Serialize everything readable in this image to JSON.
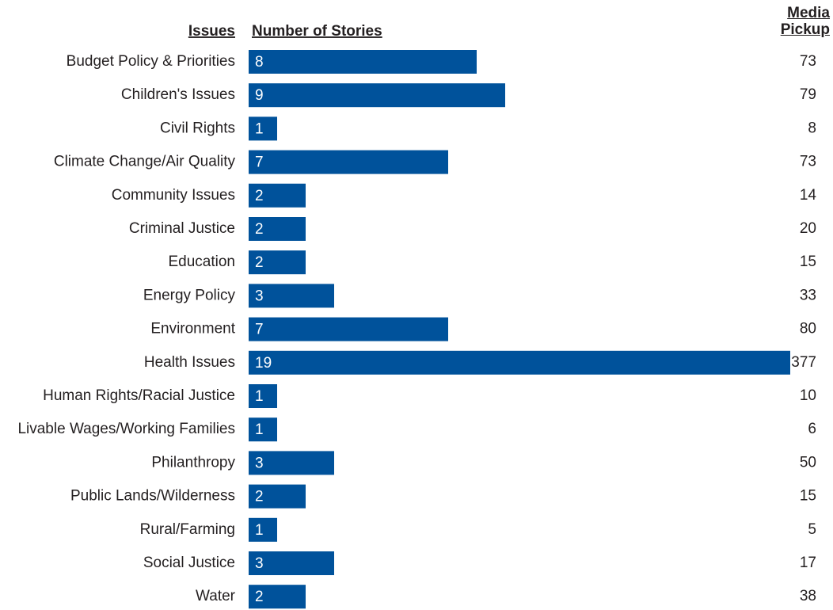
{
  "chart_data": {
    "type": "bar",
    "column_headers": [
      "Issues",
      "Number of Stories",
      "Media Pickup"
    ],
    "categories": [
      "Budget Policy & Priorities",
      "Children's Issues",
      "Civil Rights",
      "Climate Change/Air Quality",
      "Community Issues",
      "Criminal Justice",
      "Education",
      "Energy Policy",
      "Environment",
      "Health Issues",
      "Human Rights/Racial Justice",
      "Livable Wages/Working Families",
      "Philanthropy",
      "Public Lands/Wilderness",
      "Rural/Farming",
      "Social Justice",
      "Water"
    ],
    "values": [
      8,
      9,
      1,
      7,
      2,
      2,
      2,
      3,
      7,
      19,
      1,
      1,
      3,
      2,
      1,
      3,
      2
    ],
    "media_pickup": [
      73,
      79,
      8,
      73,
      14,
      20,
      15,
      33,
      80,
      377,
      10,
      6,
      50,
      15,
      5,
      17,
      38
    ],
    "color": "#00529b"
  }
}
